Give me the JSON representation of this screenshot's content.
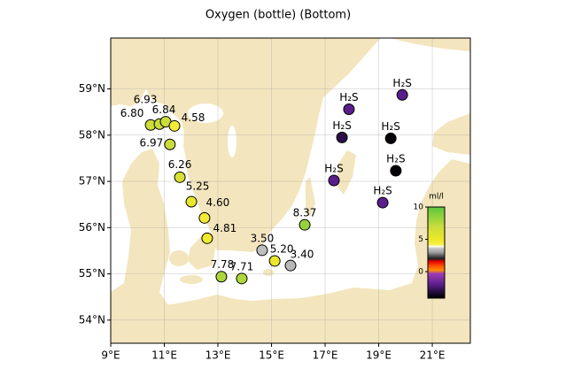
{
  "chart_data": {
    "type": "map",
    "title": "Oxygen (bottle) (Bottom)",
    "x": [
      10.49,
      10.82,
      11.05,
      11.38,
      11.21,
      11.58,
      12.01,
      12.5,
      12.6,
      13.13,
      13.89,
      14.65,
      15.12,
      15.71,
      16.24,
      17.89,
      17.63,
      17.33,
      19.88,
      19.45,
      19.64,
      19.15
    ],
    "y": [
      58.22,
      58.24,
      58.29,
      58.2,
      57.8,
      57.09,
      56.56,
      56.21,
      55.77,
      54.94,
      54.9,
      55.51,
      55.28,
      55.18,
      56.06,
      58.56,
      57.95,
      57.02,
      58.87,
      57.93,
      57.23,
      56.54
    ],
    "values": [
      6.8,
      6.93,
      6.84,
      4.58,
      6.97,
      6.26,
      5.25,
      4.6,
      4.81,
      7.78,
      7.71,
      3.5,
      5.2,
      3.4,
      8.37,
      -2,
      -3,
      -2,
      -2,
      -4,
      -4,
      -2
    ],
    "value_labels": [
      "6.80",
      "6.93",
      "6.84",
      "4.58",
      "6.97",
      "6.26",
      "5.25",
      "4.60",
      "4.81",
      "7.78",
      "7.71",
      "3.50",
      "5.20",
      "3.40",
      "8.37",
      "H₂S",
      "H₂S",
      "H₂S",
      "H₂S",
      "H₂S",
      "H₂S",
      "H₂S"
    ],
    "xlim": [
      9,
      22.42
    ],
    "ylim": [
      53.5,
      60.1
    ],
    "xticks": [
      {
        "value": 9,
        "label": "9°E"
      },
      {
        "value": 11,
        "label": "11°E"
      },
      {
        "value": 13,
        "label": "13°E"
      },
      {
        "value": 15,
        "label": "15°E"
      },
      {
        "value": 17,
        "label": "17°E"
      },
      {
        "value": 19,
        "label": "19°E"
      },
      {
        "value": 21,
        "label": "21°E"
      }
    ],
    "yticks": [
      {
        "value": 54,
        "label": "54°N"
      },
      {
        "value": 55,
        "label": "55°N"
      },
      {
        "value": 56,
        "label": "56°N"
      },
      {
        "value": 57,
        "label": "57°N"
      },
      {
        "value": 58,
        "label": "58°N"
      },
      {
        "value": 59,
        "label": "59°N"
      }
    ],
    "grid": true,
    "colorbar": {
      "label": "ml/l",
      "lim": [
        -4.1,
        10
      ],
      "ticks": [
        0,
        5,
        10
      ],
      "stops": [
        [
          10,
          "#5ac83c"
        ],
        [
          7,
          "#c8dc3c"
        ],
        [
          5,
          "#eee82a"
        ],
        [
          4.2,
          "#f5ef40"
        ],
        [
          3.9,
          "#fffff0"
        ],
        [
          3.6,
          "#c4c4c4"
        ],
        [
          3.0,
          "#a0a0a0"
        ],
        [
          2.4,
          "#505050"
        ],
        [
          2.0,
          "#202020"
        ],
        [
          1.6,
          "#e00000"
        ],
        [
          0.8,
          "#ff5a00"
        ],
        [
          0.2,
          "#ff8c00"
        ],
        [
          -0.3,
          "#a03cb4"
        ],
        [
          -2,
          "#5a1e8c"
        ],
        [
          -3.3,
          "#1e0a32"
        ],
        [
          -4.1,
          "#000000"
        ]
      ]
    }
  }
}
